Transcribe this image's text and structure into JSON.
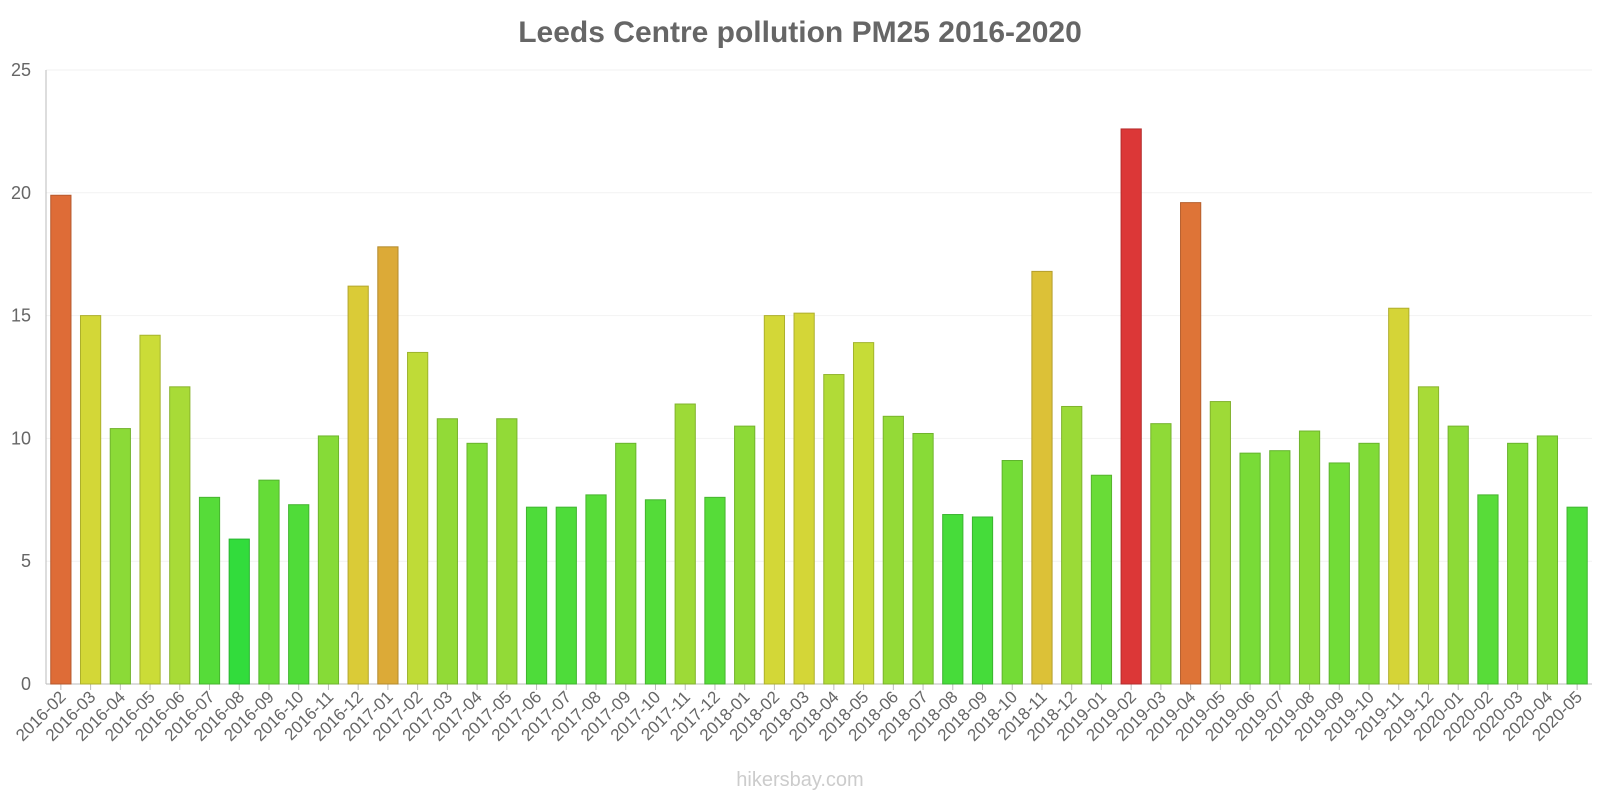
{
  "chart_data": {
    "type": "bar",
    "title": "Leeds Centre pollution PM25 2016-2020",
    "xlabel": "",
    "ylabel": "",
    "ylim": [
      0,
      25
    ],
    "yticks": [
      0,
      5,
      10,
      15,
      20,
      25
    ],
    "grid": true,
    "categories": [
      "2016-02",
      "2016-03",
      "2016-04",
      "2016-05",
      "2016-06",
      "2016-07",
      "2016-08",
      "2016-09",
      "2016-10",
      "2016-11",
      "2016-12",
      "2017-01",
      "2017-02",
      "2017-03",
      "2017-04",
      "2017-05",
      "2017-06",
      "2017-07",
      "2017-08",
      "2017-09",
      "2017-10",
      "2017-11",
      "2017-12",
      "2018-01",
      "2018-02",
      "2018-03",
      "2018-04",
      "2018-05",
      "2018-06",
      "2018-07",
      "2018-08",
      "2018-09",
      "2018-10",
      "2018-11",
      "2018-12",
      "2019-01",
      "2019-02",
      "2019-03",
      "2019-04",
      "2019-05",
      "2019-06",
      "2019-07",
      "2019-08",
      "2019-09",
      "2019-10",
      "2019-11",
      "2019-12",
      "2020-01",
      "2020-02",
      "2020-03",
      "2020-04",
      "2020-05"
    ],
    "values": [
      19.9,
      15.0,
      10.4,
      14.2,
      12.1,
      7.6,
      5.9,
      8.3,
      7.3,
      10.1,
      16.2,
      17.8,
      13.5,
      10.8,
      9.8,
      10.8,
      7.2,
      7.2,
      7.7,
      9.8,
      7.5,
      11.4,
      7.6,
      10.5,
      15.0,
      15.1,
      12.6,
      13.9,
      10.9,
      10.2,
      6.9,
      6.8,
      9.1,
      16.8,
      11.3,
      8.5,
      22.6,
      10.6,
      19.6,
      11.5,
      9.4,
      9.5,
      10.3,
      9.0,
      9.8,
      15.3,
      12.1,
      10.5,
      7.7,
      9.8,
      10.1,
      7.2
    ]
  },
  "watermark": "hikersbay.com"
}
